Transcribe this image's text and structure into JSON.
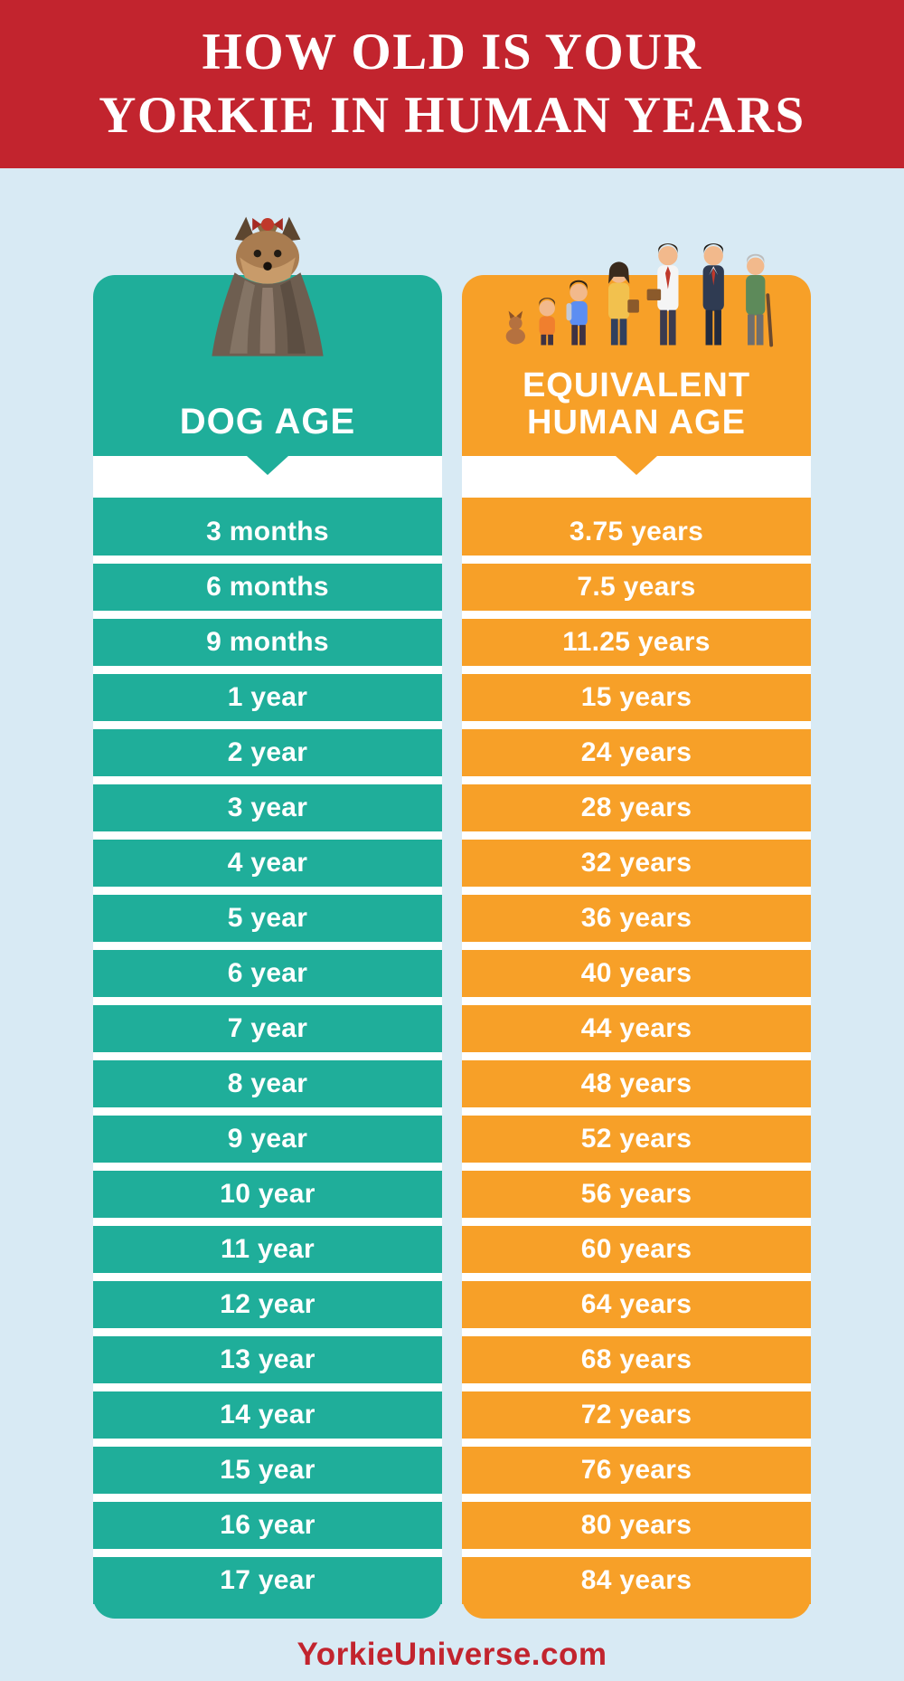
{
  "header": {
    "title_line1": "HOW OLD IS YOUR",
    "title_line2": "YORKIE IN HUMAN YEARS"
  },
  "columns": [
    {
      "id": "dog-age",
      "label_lines": [
        "DOG AGE",
        ""
      ],
      "color": "#1fae9a",
      "icon": "yorkie-illustration",
      "rows": [
        "3 months",
        "6 months",
        "9 months",
        "1 year",
        "2 year",
        "3 year",
        "4 year",
        "5 year",
        "6 year",
        "7 year",
        "8 year",
        "9 year",
        "10 year",
        "11 year",
        "12 year",
        "13 year",
        "14 year",
        "15 year",
        "16 year",
        "17 year"
      ]
    },
    {
      "id": "human-age",
      "label_lines": [
        "EQUIVALENT",
        "HUMAN AGE"
      ],
      "color": "#f7a028",
      "icon": "family-illustration",
      "rows": [
        "3.75 years",
        "7.5 years",
        "11.25 years",
        "15 years",
        "24 years",
        "28 years",
        "32 years",
        "36 years",
        "40 years",
        "44 years",
        "48 years",
        "52 years",
        "56 years",
        "60 years",
        "64 years",
        "68 years",
        "72 years",
        "76 years",
        "80 years",
        "84 years"
      ]
    }
  ],
  "footer": {
    "site": "YorkieUniverse.com"
  },
  "colors": {
    "banner_red": "#c2242e",
    "background_blue": "#d8eaf4",
    "teal": "#1fae9a",
    "orange": "#f7a028",
    "text_white": "#ffffff"
  },
  "chart_data": {
    "type": "table",
    "title": "How old is your Yorkie in human years",
    "columns": [
      "Dog Age",
      "Equivalent Human Age"
    ],
    "rows": [
      [
        "3 months",
        "3.75 years"
      ],
      [
        "6 months",
        "7.5 years"
      ],
      [
        "9 months",
        "11.25 years"
      ],
      [
        "1 year",
        "15 years"
      ],
      [
        "2 year",
        "24 years"
      ],
      [
        "3 year",
        "28 years"
      ],
      [
        "4 year",
        "32 years"
      ],
      [
        "5 year",
        "36 years"
      ],
      [
        "6 year",
        "40 years"
      ],
      [
        "7 year",
        "44 years"
      ],
      [
        "8 year",
        "48 years"
      ],
      [
        "9 year",
        "52 years"
      ],
      [
        "10 year",
        "56 years"
      ],
      [
        "11 year",
        "60 years"
      ],
      [
        "12 year",
        "64 years"
      ],
      [
        "13 year",
        "68 years"
      ],
      [
        "14 year",
        "72 years"
      ],
      [
        "15 year",
        "76 years"
      ],
      [
        "16 year",
        "80 years"
      ],
      [
        "17 year",
        "84 years"
      ]
    ]
  }
}
